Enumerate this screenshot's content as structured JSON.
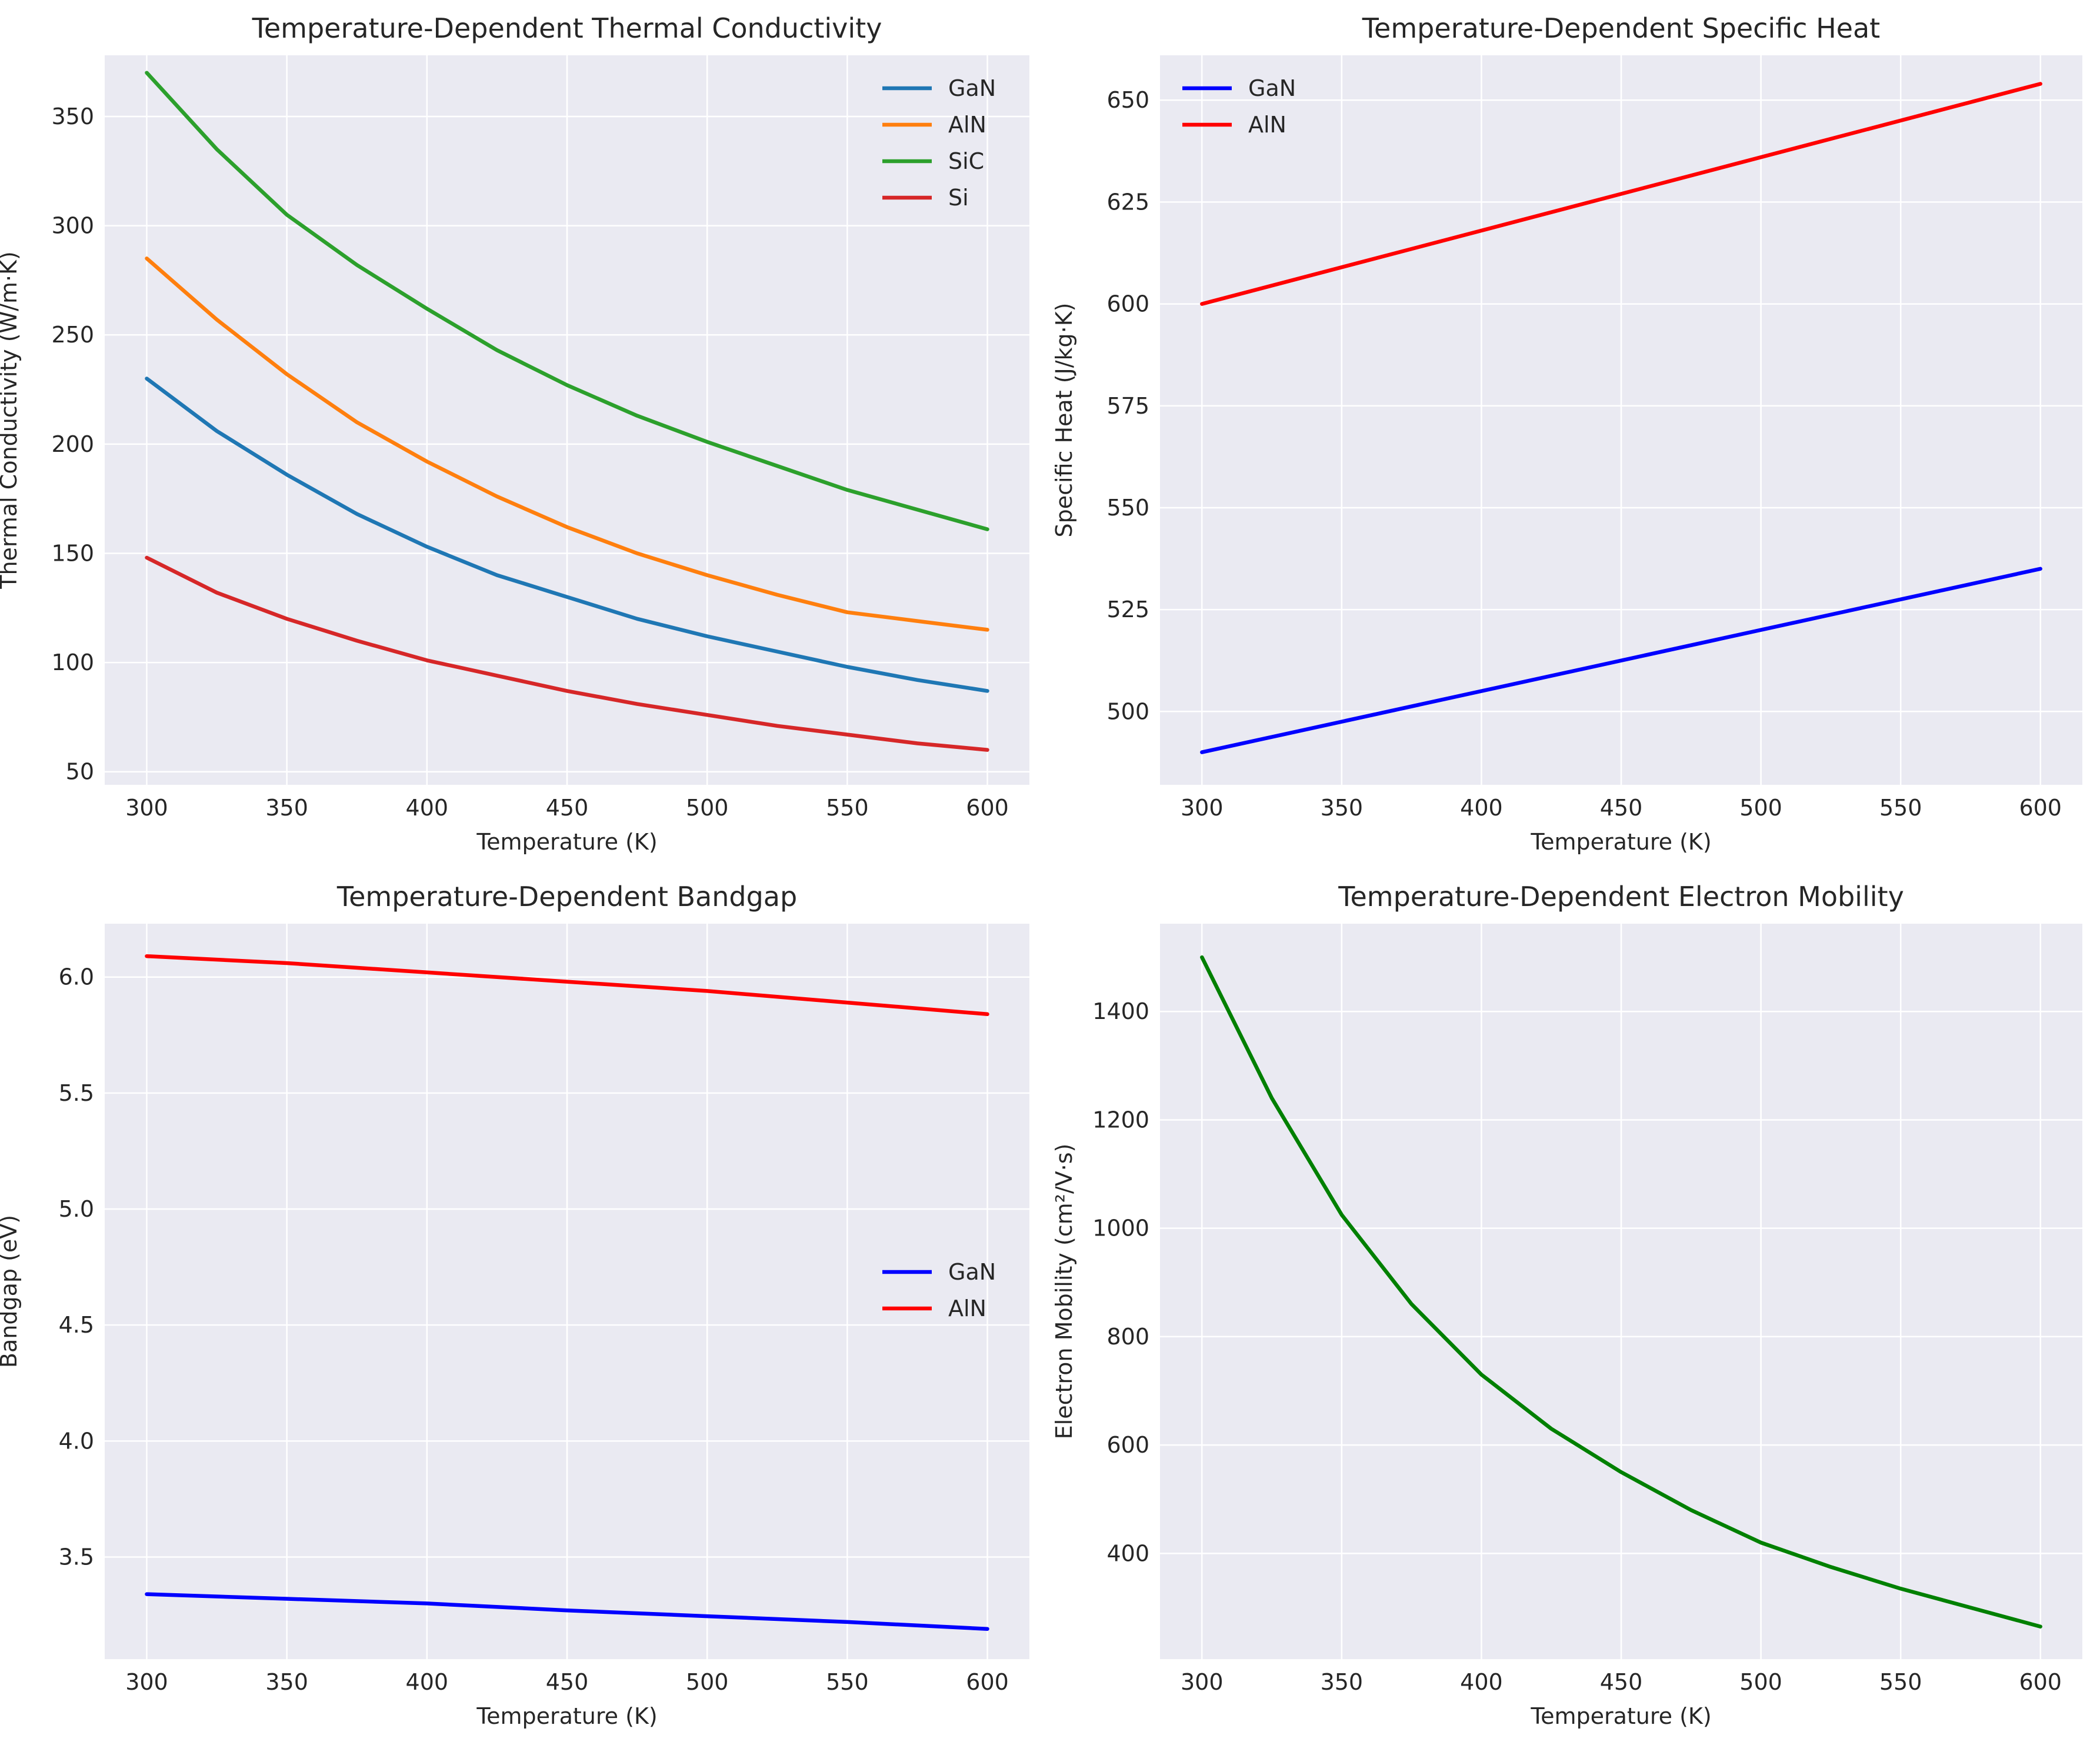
{
  "chart_data": [
    {
      "type": "line",
      "title": "Temperature-Dependent Thermal Conductivity",
      "xlabel": "Temperature (K)",
      "ylabel": "Thermal Conductivity (W/m·K)",
      "xlim": [
        285,
        615
      ],
      "ylim": [
        44,
        378
      ],
      "xticks": [
        300,
        350,
        400,
        450,
        500,
        550,
        600
      ],
      "yticks": [
        50,
        100,
        150,
        200,
        250,
        300,
        350
      ],
      "grid": true,
      "legend": "top-right",
      "x": [
        300,
        325,
        350,
        375,
        400,
        425,
        450,
        475,
        500,
        525,
        550,
        575,
        600
      ],
      "series": [
        {
          "name": "GaN",
          "color": "#1f77b4",
          "values": [
            230,
            206,
            186,
            168,
            153,
            140,
            130,
            120,
            112,
            105,
            98,
            92,
            87
          ]
        },
        {
          "name": "AlN",
          "color": "#ff7f0e",
          "values": [
            285,
            257,
            232,
            210,
            192,
            176,
            162,
            150,
            140,
            131,
            123,
            119,
            115
          ]
        },
        {
          "name": "SiC",
          "color": "#2ca02c",
          "values": [
            370,
            335,
            305,
            282,
            262,
            243,
            227,
            213,
            201,
            190,
            179,
            170,
            161
          ]
        },
        {
          "name": "Si",
          "color": "#d62728",
          "values": [
            148,
            132,
            120,
            110,
            101,
            94,
            87,
            81,
            76,
            71,
            67,
            63,
            60
          ]
        }
      ]
    },
    {
      "type": "line",
      "title": "Temperature-Dependent Specific Heat",
      "xlabel": "Temperature (K)",
      "ylabel": "Specific Heat (J/kg·K)",
      "xlim": [
        285,
        615
      ],
      "ylim": [
        482,
        661
      ],
      "xticks": [
        300,
        350,
        400,
        450,
        500,
        550,
        600
      ],
      "yticks": [
        500,
        525,
        550,
        575,
        600,
        625,
        650
      ],
      "grid": true,
      "legend": "top-left",
      "x": [
        300,
        600
      ],
      "series": [
        {
          "name": "GaN",
          "color": "#0000ff",
          "values": [
            490,
            535
          ]
        },
        {
          "name": "AlN",
          "color": "#ff0000",
          "values": [
            600,
            654
          ]
        }
      ]
    },
    {
      "type": "line",
      "title": "Temperature-Dependent Bandgap",
      "xlabel": "Temperature (K)",
      "ylabel": "Bandgap (eV)",
      "xlim": [
        285,
        615
      ],
      "ylim": [
        3.06,
        6.23
      ],
      "xticks": [
        300,
        350,
        400,
        450,
        500,
        550,
        600
      ],
      "yticks": [
        "3.5",
        "4.0",
        "4.5",
        "5.0",
        "5.5",
        "6.0"
      ],
      "grid": true,
      "legend": "center-right",
      "x": [
        300,
        350,
        400,
        450,
        500,
        550,
        600
      ],
      "series": [
        {
          "name": "GaN",
          "color": "#0000ff",
          "values": [
            3.34,
            3.32,
            3.3,
            3.27,
            3.245,
            3.22,
            3.19
          ]
        },
        {
          "name": "AlN",
          "color": "#ff0000",
          "values": [
            6.09,
            6.06,
            6.02,
            5.98,
            5.94,
            5.89,
            5.84
          ]
        }
      ]
    },
    {
      "type": "line",
      "title": "Temperature-Dependent Electron Mobility",
      "xlabel": "Temperature (K)",
      "ylabel": "Electron Mobility (cm²/V·s)",
      "xlim": [
        285,
        615
      ],
      "ylim": [
        205,
        1562
      ],
      "xticks": [
        300,
        350,
        400,
        450,
        500,
        550,
        600
      ],
      "yticks": [
        400,
        600,
        800,
        1000,
        1200,
        1400
      ],
      "grid": true,
      "legend": "none",
      "x": [
        300,
        325,
        350,
        375,
        400,
        425,
        450,
        475,
        500,
        525,
        550,
        575,
        600
      ],
      "series": [
        {
          "color": "#008000",
          "values": [
            1500,
            1240,
            1025,
            860,
            730,
            630,
            550,
            480,
            420,
            375,
            335,
            300,
            265
          ]
        }
      ]
    }
  ]
}
